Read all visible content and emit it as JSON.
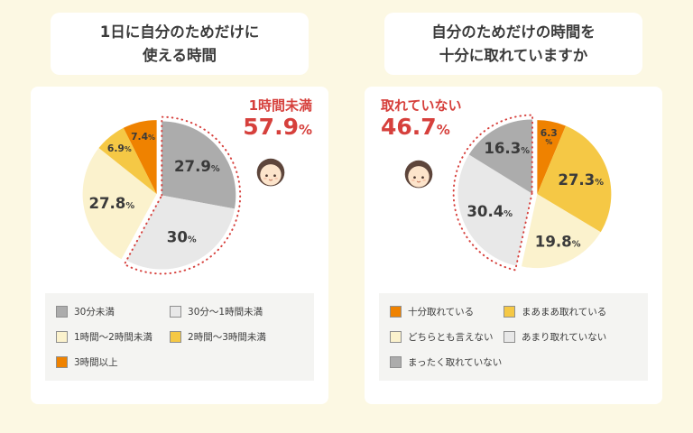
{
  "page": {
    "background": "#FCF8E3",
    "card_background": "#FFFFFF",
    "accent_red": "#D6403C"
  },
  "chart_data": [
    {
      "type": "pie",
      "title": "1日に自分のためだけに使える時間",
      "title_lines": [
        "1日に自分のためだけに",
        "使える時間"
      ],
      "legend_position": "bottom",
      "slices": [
        {
          "label": "30分未満",
          "value": 27.9,
          "pct_label": "27.9%",
          "color": "#ACACAC"
        },
        {
          "label": "30分〜1時間未満",
          "value": 30,
          "pct_label": "30%",
          "color": "#E8E8E8"
        },
        {
          "label": "1時間〜2時間未満",
          "value": 27.8,
          "pct_label": "27.8%",
          "color": "#FBF2CD"
        },
        {
          "label": "2時間〜3時間未満",
          "value": 6.9,
          "pct_label": "6.9%",
          "color": "#F5C845"
        },
        {
          "label": "3時間以上",
          "value": 7.4,
          "pct_label": "7.4%",
          "color": "#EF8200"
        }
      ],
      "highlight": {
        "slice_indexes": [
          0,
          1
        ],
        "label": "1時間未満",
        "value": 57.9,
        "value_text": "57.9",
        "unit": "%",
        "color": "#D6403C",
        "side": "right"
      }
    },
    {
      "type": "pie",
      "title": "自分のためだけの時間を十分に取れていますか",
      "title_lines": [
        "自分のためだけの時間を",
        "十分に取れていますか"
      ],
      "legend_position": "bottom",
      "slices": [
        {
          "label": "十分取れている",
          "value": 6.3,
          "pct_label": "6.3%",
          "color": "#EF8200",
          "stack_pct": true
        },
        {
          "label": "まあまあ取れている",
          "value": 27.3,
          "pct_label": "27.3%",
          "color": "#F5C845"
        },
        {
          "label": "どちらとも言えない",
          "value": 19.8,
          "pct_label": "19.8%",
          "color": "#FBF2CD"
        },
        {
          "label": "あまり取れていない",
          "value": 30.4,
          "pct_label": "30.4%",
          "color": "#E8E8E8"
        },
        {
          "label": "まったく取れていない",
          "value": 16.3,
          "pct_label": "16.3%",
          "color": "#ACACAC"
        }
      ],
      "highlight": {
        "slice_indexes": [
          3,
          4
        ],
        "label": "取れていない",
        "value": 46.7,
        "value_text": "46.7",
        "unit": "%",
        "color": "#D6403C",
        "side": "left"
      }
    }
  ]
}
